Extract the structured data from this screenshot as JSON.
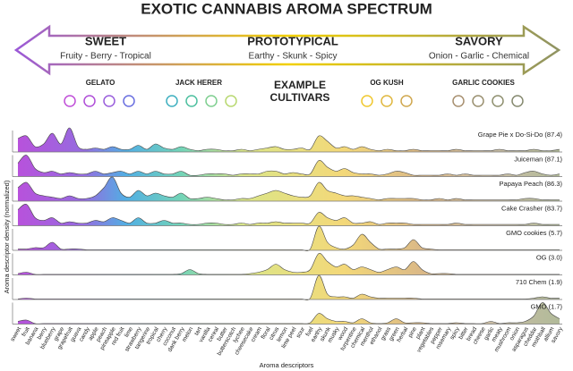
{
  "header": {
    "title": "EXOTIC CANNABIS AROMA SPECTRUM",
    "groups": [
      {
        "heading": "SWEET",
        "descriptors": "Fruity - Berry - Tropical"
      },
      {
        "heading": "PROTOTYPICAL",
        "descriptors": "Earthy - Skunk - Spicy"
      },
      {
        "heading": "SAVORY",
        "descriptors": "Onion - Garlic - Chemical"
      }
    ],
    "cultivars_heading": [
      "EXAMPLE",
      "CULTIVARS"
    ],
    "cultivars": [
      "GELATO",
      "JACK HERER",
      "OG KUSH",
      "GARLIC COOKIES"
    ]
  },
  "chart_data": {
    "type": "ridgeline",
    "x_label": "Aroma descriptors",
    "y_label": "Aroma descriptor density (normalized)",
    "ylim": [
      0,
      1
    ],
    "categories": [
      "sweet",
      "fruit",
      "banana",
      "berry",
      "blueberry",
      "grape",
      "grapefruit",
      "guava",
      "candy",
      "apple",
      "peach",
      "pineapple",
      "red fruit",
      "lime",
      "strawberry",
      "tangerine",
      "tropical",
      "cherry",
      "coconut",
      "dank berry",
      "melon",
      "tart",
      "vanilla",
      "cereal",
      "butter",
      "butterscotch",
      "lychee",
      "cheesecake",
      "cream",
      "floral",
      "citrus",
      "lemon",
      "lime peel",
      "sour",
      "fuel",
      "earthy",
      "skunk",
      "musky",
      "wood",
      "turpentine",
      "chemical",
      "menthol",
      "ethanol",
      "grass",
      "green",
      "herbal",
      "pine",
      "plant",
      "vegetables",
      "pepper",
      "rosemary",
      "spicy",
      "bitter",
      "bread",
      "cheese",
      "garlic",
      "meaty",
      "mushroom",
      "onion",
      "asparagus",
      "cheddar",
      "mothball",
      "allium",
      "savory"
    ],
    "series": [
      {
        "name": "Grape Pie x Do-Si-Do (87.4)",
        "values": [
          0.5,
          0.6,
          0.2,
          0.3,
          0.7,
          0.3,
          0.9,
          0.2,
          0.1,
          0.15,
          0.1,
          0.2,
          0.1,
          0.1,
          0.25,
          0.1,
          0.3,
          0.15,
          0.1,
          0.2,
          0.1,
          0.05,
          0.1,
          0.1,
          0.05,
          0.05,
          0.1,
          0.05,
          0.1,
          0.15,
          0.2,
          0.1,
          0.1,
          0.15,
          0.1,
          0.6,
          0.4,
          0.15,
          0.2,
          0.1,
          0.2,
          0.1,
          0.05,
          0.1,
          0.05,
          0.05,
          0.1,
          0.05,
          0.05,
          0.05,
          0.05,
          0.1,
          0.05,
          0.05,
          0.05,
          0.05,
          0.1,
          0.05,
          0.05,
          0.05,
          0.1,
          0.05,
          0.05,
          0.1
        ]
      },
      {
        "name": "Juiceman (87.1)",
        "values": [
          0.5,
          0.8,
          0.3,
          0.15,
          0.2,
          0.1,
          0.15,
          0.1,
          0.1,
          0.2,
          0.1,
          0.15,
          0.2,
          0.1,
          0.2,
          0.1,
          0.2,
          0.1,
          0.1,
          0.2,
          0.05,
          0.05,
          0.1,
          0.1,
          0.1,
          0.05,
          0.1,
          0.1,
          0.1,
          0.2,
          0.2,
          0.1,
          0.15,
          0.1,
          0.1,
          0.6,
          0.35,
          0.2,
          0.3,
          0.15,
          0.1,
          0.1,
          0.05,
          0.1,
          0.2,
          0.15,
          0.05,
          0.05,
          0.05,
          0.05,
          0.1,
          0.05,
          0.1,
          0.05,
          0.05,
          0.05,
          0.05,
          0.1,
          0.05,
          0.15,
          0.2,
          0.1,
          0.05,
          0.1
        ]
      },
      {
        "name": "Papaya Peach (86.3)",
        "values": [
          0.5,
          0.7,
          0.3,
          0.2,
          0.15,
          0.1,
          0.2,
          0.1,
          0.1,
          0.2,
          0.5,
          0.9,
          0.3,
          0.15,
          0.4,
          0.2,
          0.3,
          0.2,
          0.15,
          0.3,
          0.1,
          0.1,
          0.15,
          0.1,
          0.05,
          0.05,
          0.1,
          0.1,
          0.2,
          0.3,
          0.4,
          0.3,
          0.2,
          0.15,
          0.2,
          0.7,
          0.4,
          0.3,
          0.2,
          0.2,
          0.15,
          0.1,
          0.05,
          0.1,
          0.1,
          0.1,
          0.1,
          0.05,
          0.05,
          0.1,
          0.05,
          0.1,
          0.05,
          0.05,
          0.05,
          0.05,
          0.05,
          0.05,
          0.05,
          0.1,
          0.1,
          0.05,
          0.05,
          0.05
        ]
      },
      {
        "name": "Cake Crasher (83.7)",
        "values": [
          0.6,
          0.8,
          0.3,
          0.2,
          0.3,
          0.1,
          0.15,
          0.1,
          0.1,
          0.2,
          0.15,
          0.3,
          0.2,
          0.1,
          0.3,
          0.1,
          0.1,
          0.2,
          0.1,
          0.1,
          0.05,
          0.05,
          0.1,
          0.1,
          0.05,
          0.05,
          0.1,
          0.05,
          0.1,
          0.1,
          0.15,
          0.1,
          0.1,
          0.1,
          0.1,
          0.5,
          0.3,
          0.2,
          0.3,
          0.1,
          0.1,
          0.15,
          0.05,
          0.1,
          0.1,
          0.1,
          0.05,
          0.05,
          0.05,
          0.05,
          0.05,
          0.1,
          0.05,
          0.05,
          0.05,
          0.05,
          0.05,
          0.05,
          0.05,
          0.05,
          0.1,
          0.05,
          0.05,
          0.05
        ]
      },
      {
        "name": "GMO cookies (5.7)",
        "values": [
          0.05,
          0.05,
          0.1,
          0.1,
          0.3,
          0.05,
          0.05,
          0.05,
          0.02,
          0.02,
          0.02,
          0.02,
          0.02,
          0.02,
          0.02,
          0.02,
          0.02,
          0.02,
          0.02,
          0.02,
          0.02,
          0.02,
          0.02,
          0.02,
          0.02,
          0.02,
          0.02,
          0.02,
          0.02,
          0.02,
          0.02,
          0.02,
          0.02,
          0.02,
          0.05,
          0.9,
          0.3,
          0.1,
          0.05,
          0.2,
          0.6,
          0.3,
          0.05,
          0.05,
          0.05,
          0.1,
          0.4,
          0.1,
          0.05,
          0.02,
          0.02,
          0.02,
          0.02,
          0.02,
          0.02,
          0.02,
          0.02,
          0.02,
          0.02,
          0.02,
          0.02,
          0.02,
          0.02,
          0.02
        ]
      },
      {
        "name": "OG (3.0)",
        "values": [
          0.05,
          0.1,
          0.02,
          0.02,
          0.02,
          0.02,
          0.02,
          0.02,
          0.02,
          0.02,
          0.02,
          0.02,
          0.02,
          0.02,
          0.02,
          0.02,
          0.02,
          0.02,
          0.02,
          0.05,
          0.2,
          0.05,
          0.02,
          0.02,
          0.02,
          0.02,
          0.02,
          0.05,
          0.1,
          0.2,
          0.4,
          0.2,
          0.1,
          0.1,
          0.2,
          0.8,
          0.5,
          0.3,
          0.4,
          0.2,
          0.3,
          0.2,
          0.1,
          0.2,
          0.3,
          0.2,
          0.5,
          0.2,
          0.05,
          0.05,
          0.05,
          0.02,
          0.02,
          0.02,
          0.02,
          0.02,
          0.02,
          0.02,
          0.02,
          0.02,
          0.02,
          0.02,
          0.02,
          0.02
        ]
      },
      {
        "name": "710 Chem (1.9)",
        "values": [
          0.02,
          0.05,
          0.02,
          0.02,
          0.02,
          0.02,
          0.02,
          0.02,
          0.02,
          0.02,
          0.02,
          0.02,
          0.02,
          0.02,
          0.02,
          0.02,
          0.02,
          0.02,
          0.02,
          0.02,
          0.02,
          0.02,
          0.02,
          0.02,
          0.02,
          0.02,
          0.02,
          0.02,
          0.02,
          0.02,
          0.02,
          0.02,
          0.02,
          0.02,
          0.05,
          0.9,
          0.2,
          0.1,
          0.1,
          0.05,
          0.2,
          0.1,
          0.05,
          0.05,
          0.05,
          0.05,
          0.05,
          0.02,
          0.02,
          0.02,
          0.02,
          0.02,
          0.02,
          0.02,
          0.02,
          0.02,
          0.02,
          0.02,
          0.02,
          0.02,
          0.05,
          0.1,
          0.05,
          0.05
        ]
      },
      {
        "name": "GMO (1.7)",
        "values": [
          0.1,
          0.15,
          0.02,
          0.02,
          0.02,
          0.02,
          0.02,
          0.02,
          0.02,
          0.02,
          0.02,
          0.02,
          0.02,
          0.02,
          0.02,
          0.02,
          0.02,
          0.02,
          0.02,
          0.02,
          0.02,
          0.02,
          0.02,
          0.02,
          0.02,
          0.02,
          0.02,
          0.02,
          0.02,
          0.02,
          0.02,
          0.02,
          0.02,
          0.02,
          0.05,
          0.4,
          0.2,
          0.1,
          0.1,
          0.05,
          0.2,
          0.05,
          0.02,
          0.05,
          0.2,
          0.05,
          0.05,
          0.05,
          0.02,
          0.02,
          0.02,
          0.05,
          0.02,
          0.02,
          0.02,
          0.1,
          0.02,
          0.05,
          0.05,
          0.1,
          0.3,
          0.8,
          0.4,
          0.2
        ]
      }
    ]
  }
}
